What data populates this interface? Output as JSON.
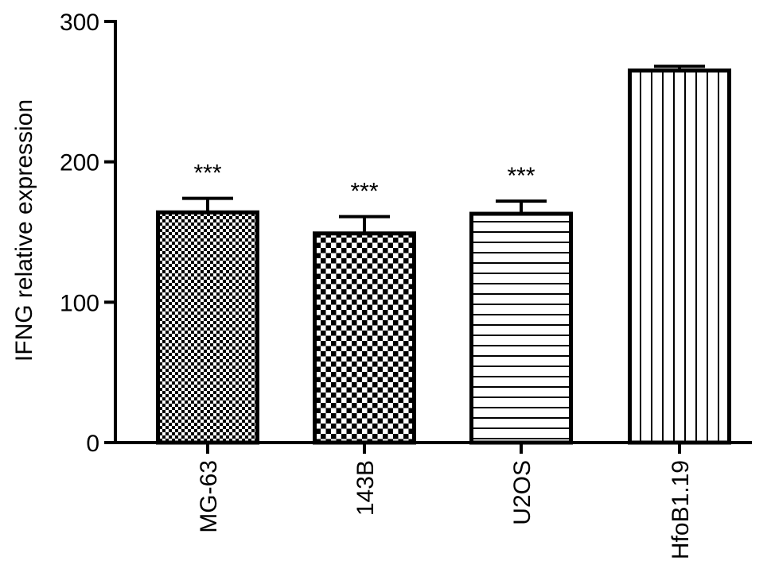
{
  "chart_data": {
    "type": "bar",
    "categories": [
      "MG-63",
      "143B",
      "U2OS",
      "HfoB1.19"
    ],
    "values": [
      164,
      149,
      163,
      265
    ],
    "errors": [
      10,
      12,
      9,
      3
    ],
    "annotations": [
      "***",
      "***",
      "***",
      ""
    ],
    "patterns": [
      "fine-checker",
      "coarse-checker",
      "horizontal-lines",
      "vertical-lines"
    ],
    "ylabel": "IFNG relative expression",
    "xlabel": "",
    "ylim": [
      0,
      300
    ],
    "yticks": [
      0,
      100,
      200,
      300
    ],
    "grid": false,
    "legend": "none",
    "colors": {
      "bar_stroke": "#000000",
      "bar_fill": "#ffffff",
      "pattern_ink": "#000000"
    }
  }
}
